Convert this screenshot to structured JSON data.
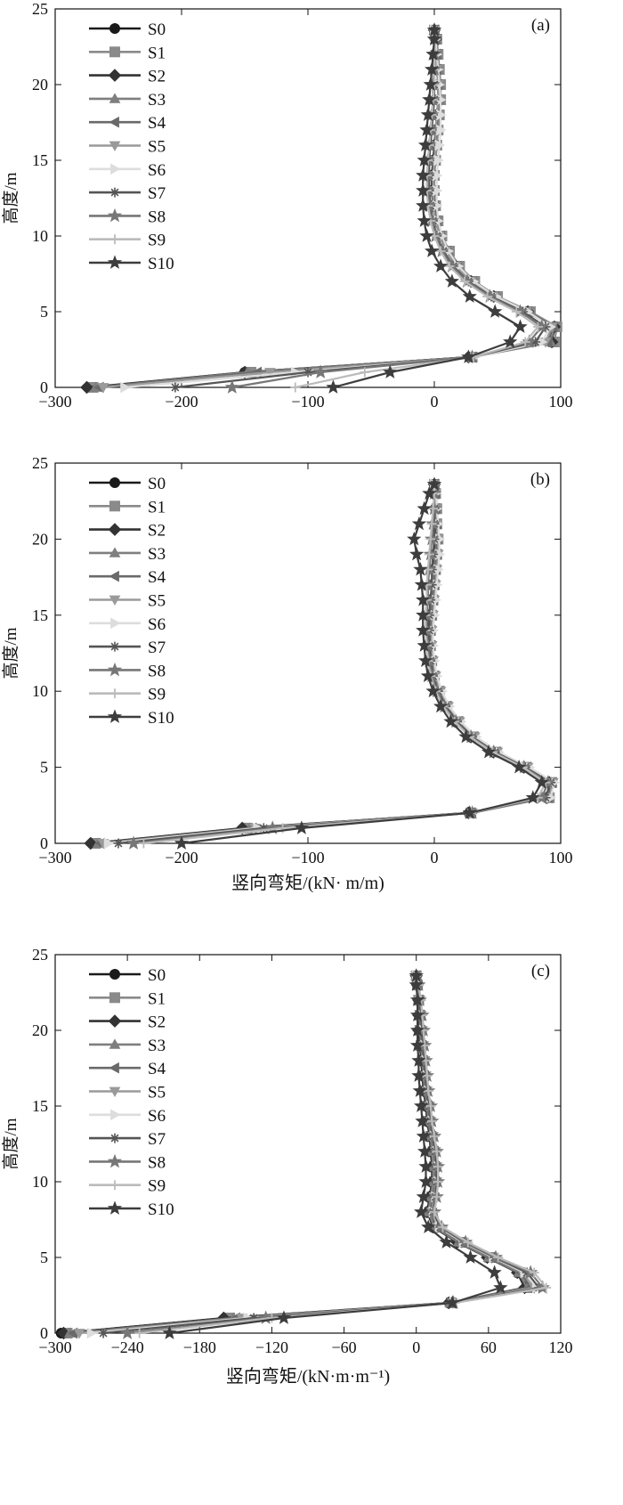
{
  "figure": {
    "series_colors": [
      "#1a1a1a",
      "#8a8a8a",
      "#333333",
      "#7f7f7f",
      "#6a6a6a",
      "#9a9a9a",
      "#dddddd",
      "#555555",
      "#777777",
      "#bbbbbb",
      "#3d3d3d"
    ],
    "series_markers": [
      "circle",
      "square",
      "diamond",
      "triangle-up",
      "triangle-left",
      "triangle-down",
      "triangle-right",
      "asterisk",
      "star",
      "plus",
      "star"
    ]
  },
  "chart_data": [
    {
      "type": "line",
      "panel_label": "(a)",
      "xlabel": "",
      "ylabel": "高度/m",
      "xlim": [
        -300,
        100
      ],
      "ylim": [
        0,
        25
      ],
      "xticks": [
        -300,
        -200,
        -100,
        0,
        100
      ],
      "xtick_labels": [
        "−300",
        "−200",
        "−100",
        "0",
        "100"
      ],
      "yticks": [
        0,
        5,
        10,
        15,
        20,
        25
      ],
      "ytick_labels": [
        "0",
        "5",
        "10",
        "15",
        "20",
        "25"
      ],
      "legend_position": "top-left",
      "grid": false,
      "y": [
        0,
        1,
        2,
        3,
        4,
        5,
        6,
        7,
        8,
        9,
        10,
        11,
        12,
        13,
        14,
        15,
        16,
        17,
        18,
        19,
        20,
        21,
        22,
        23,
        23.6
      ],
      "series": [
        {
          "name": "S0",
          "x": [
            -272,
            -150,
            28,
            92,
            96,
            75,
            48,
            30,
            18,
            10,
            5,
            2,
            0,
            -1,
            -1,
            0,
            1,
            2,
            3,
            4,
            4,
            3,
            2,
            1,
            0
          ]
        },
        {
          "name": "S1",
          "x": [
            -270,
            -145,
            30,
            95,
            97,
            76,
            50,
            32,
            20,
            12,
            6,
            3,
            1,
            0,
            0,
            1,
            2,
            3,
            4,
            5,
            5,
            4,
            3,
            2,
            0
          ]
        },
        {
          "name": "S2",
          "x": [
            -275,
            -150,
            27,
            93,
            95,
            74,
            47,
            29,
            17,
            9,
            4,
            1,
            -1,
            -2,
            -2,
            -1,
            0,
            1,
            2,
            3,
            3,
            2,
            1,
            1,
            0
          ]
        },
        {
          "name": "S3",
          "x": [
            -268,
            -148,
            29,
            92,
            95,
            75,
            49,
            31,
            19,
            11,
            5,
            2,
            0,
            -1,
            -1,
            0,
            1,
            2,
            3,
            4,
            4,
            3,
            2,
            1,
            0
          ]
        },
        {
          "name": "S4",
          "x": [
            -265,
            -140,
            30,
            90,
            94,
            74,
            48,
            30,
            18,
            10,
            5,
            2,
            0,
            -1,
            -1,
            0,
            1,
            2,
            2,
            3,
            3,
            2,
            2,
            1,
            0
          ]
        },
        {
          "name": "S5",
          "x": [
            -262,
            -130,
            31,
            88,
            93,
            73,
            47,
            29,
            17,
            9,
            4,
            1,
            -1,
            -1,
            -1,
            0,
            1,
            1,
            2,
            3,
            3,
            2,
            1,
            1,
            0
          ]
        },
        {
          "name": "S6",
          "x": [
            -245,
            -110,
            32,
            85,
            92,
            74,
            49,
            31,
            19,
            11,
            6,
            3,
            2,
            2,
            2,
            3,
            4,
            5,
            5,
            5,
            4,
            3,
            2,
            1,
            0
          ]
        },
        {
          "name": "S7",
          "x": [
            -205,
            -100,
            30,
            80,
            88,
            70,
            45,
            27,
            15,
            7,
            2,
            -1,
            -3,
            -4,
            -4,
            -4,
            -3,
            -2,
            -1,
            0,
            0,
            0,
            0,
            0,
            0
          ]
        },
        {
          "name": "S8",
          "x": [
            -160,
            -90,
            30,
            75,
            85,
            68,
            44,
            26,
            14,
            6,
            1,
            -2,
            -4,
            -5,
            -5,
            -5,
            -4,
            -3,
            -2,
            -1,
            -1,
            0,
            0,
            0,
            0
          ]
        },
        {
          "name": "S9",
          "x": [
            -110,
            -55,
            31,
            72,
            82,
            65,
            42,
            24,
            12,
            5,
            0,
            -3,
            -5,
            -6,
            -6,
            -5,
            -4,
            -3,
            -2,
            -1,
            0,
            0,
            0,
            0,
            0
          ]
        },
        {
          "name": "S10",
          "x": [
            -80,
            -35,
            27,
            60,
            68,
            48,
            28,
            14,
            5,
            -2,
            -6,
            -8,
            -9,
            -9,
            -9,
            -8,
            -7,
            -6,
            -5,
            -4,
            -3,
            -2,
            -1,
            0,
            0
          ]
        }
      ]
    },
    {
      "type": "line",
      "panel_label": "(b)",
      "xlabel": "竖向弯矩/(kN· m/m)",
      "ylabel": "高度/m",
      "xlim": [
        -300,
        100
      ],
      "ylim": [
        0,
        25
      ],
      "xticks": [
        -300,
        -200,
        -100,
        0,
        100
      ],
      "xtick_labels": [
        "−300",
        "−200",
        "−100",
        "0",
        "100"
      ],
      "yticks": [
        0,
        5,
        10,
        15,
        20,
        25
      ],
      "ytick_labels": [
        "0",
        "5",
        "10",
        "15",
        "20",
        "25"
      ],
      "legend_position": "top-left",
      "grid": false,
      "y": [
        0,
        1,
        2,
        3,
        4,
        5,
        6,
        7,
        8,
        9,
        10,
        11,
        12,
        13,
        14,
        15,
        16,
        17,
        18,
        19,
        20,
        21,
        22,
        23,
        23.6
      ],
      "series": [
        {
          "name": "S0",
          "x": [
            -270,
            -150,
            28,
            90,
            92,
            72,
            48,
            30,
            18,
            9,
            3,
            -1,
            -3,
            -4,
            -4,
            -3,
            -2,
            -1,
            0,
            1,
            2,
            2,
            1,
            1,
            0
          ]
        },
        {
          "name": "S1",
          "x": [
            -268,
            -148,
            29,
            91,
            93,
            73,
            49,
            31,
            19,
            10,
            4,
            0,
            -2,
            -3,
            -3,
            -2,
            -1,
            0,
            1,
            2,
            3,
            2,
            2,
            1,
            0
          ]
        },
        {
          "name": "S2",
          "x": [
            -272,
            -152,
            27,
            89,
            91,
            71,
            47,
            29,
            17,
            8,
            2,
            -2,
            -4,
            -5,
            -5,
            -4,
            -3,
            -2,
            -1,
            0,
            1,
            1,
            1,
            0,
            0
          ]
        },
        {
          "name": "S3",
          "x": [
            -266,
            -146,
            28,
            90,
            92,
            72,
            48,
            30,
            18,
            9,
            3,
            -1,
            -3,
            -4,
            -4,
            -3,
            -2,
            -1,
            0,
            1,
            2,
            2,
            1,
            1,
            0
          ]
        },
        {
          "name": "S4",
          "x": [
            -264,
            -144,
            29,
            90,
            93,
            73,
            49,
            31,
            19,
            10,
            4,
            0,
            -2,
            -3,
            -3,
            -2,
            -1,
            0,
            1,
            2,
            2,
            2,
            1,
            1,
            0
          ]
        },
        {
          "name": "S5",
          "x": [
            -262,
            -142,
            30,
            91,
            94,
            74,
            50,
            32,
            20,
            11,
            5,
            1,
            -1,
            -2,
            -2,
            -1,
            0,
            1,
            2,
            3,
            3,
            2,
            2,
            1,
            0
          ]
        },
        {
          "name": "S6",
          "x": [
            -258,
            -140,
            31,
            92,
            95,
            75,
            51,
            33,
            21,
            12,
            6,
            2,
            0,
            -1,
            -1,
            0,
            1,
            2,
            3,
            4,
            4,
            3,
            2,
            1,
            0
          ]
        },
        {
          "name": "S7",
          "x": [
            -250,
            -135,
            30,
            88,
            92,
            72,
            48,
            30,
            18,
            9,
            3,
            -1,
            -3,
            -4,
            -4,
            -4,
            -3,
            -2,
            -2,
            -1,
            0,
            0,
            0,
            0,
            0
          ]
        },
        {
          "name": "S8",
          "x": [
            -238,
            -128,
            30,
            85,
            90,
            71,
            47,
            29,
            17,
            8,
            2,
            -2,
            -4,
            -5,
            -6,
            -6,
            -5,
            -5,
            -4,
            -3,
            -2,
            -1,
            0,
            0,
            0
          ]
        },
        {
          "name": "S9",
          "x": [
            -230,
            -120,
            29,
            82,
            88,
            70,
            46,
            28,
            16,
            7,
            1,
            -3,
            -5,
            -6,
            -7,
            -7,
            -6,
            -6,
            -5,
            -4,
            -3,
            -2,
            -1,
            0,
            0
          ]
        },
        {
          "name": "S10",
          "x": [
            -200,
            -105,
            28,
            78,
            85,
            67,
            43,
            25,
            13,
            5,
            -1,
            -5,
            -7,
            -8,
            -9,
            -9,
            -9,
            -10,
            -11,
            -14,
            -16,
            -12,
            -8,
            -4,
            0
          ]
        }
      ]
    },
    {
      "type": "line",
      "panel_label": "(c)",
      "xlabel": "竖向弯矩/(kN·m·m⁻¹)",
      "ylabel": "高度/m",
      "xlim": [
        -300,
        120
      ],
      "ylim": [
        0,
        25
      ],
      "xticks": [
        -300,
        -240,
        -180,
        -120,
        -60,
        0,
        60,
        120
      ],
      "xtick_labels": [
        "−300",
        "−240",
        "−180",
        "−120",
        "−60",
        "0",
        "60",
        "120"
      ],
      "yticks": [
        0,
        5,
        10,
        15,
        20,
        25
      ],
      "ytick_labels": [
        "0",
        "5",
        "10",
        "15",
        "20",
        "25"
      ],
      "legend_position": "top-left",
      "grid": false,
      "y": [
        0,
        1,
        2,
        3,
        4,
        5,
        6,
        7,
        8,
        9,
        10,
        11,
        12,
        13,
        14,
        15,
        16,
        17,
        18,
        19,
        20,
        21,
        22,
        23,
        23.6
      ],
      "series": [
        {
          "name": "S0",
          "x": [
            -295,
            -158,
            28,
            92,
            85,
            60,
            35,
            15,
            10,
            12,
            14,
            14,
            13,
            12,
            10,
            9,
            7,
            6,
            5,
            4,
            3,
            3,
            2,
            1,
            0
          ]
        },
        {
          "name": "S1",
          "x": [
            -290,
            -155,
            29,
            94,
            86,
            61,
            36,
            16,
            11,
            13,
            15,
            15,
            14,
            12,
            10,
            9,
            7,
            6,
            5,
            4,
            3,
            3,
            2,
            1,
            0
          ]
        },
        {
          "name": "S2",
          "x": [
            -293,
            -160,
            27,
            90,
            84,
            59,
            34,
            14,
            9,
            11,
            13,
            13,
            12,
            11,
            9,
            8,
            6,
            5,
            4,
            3,
            2,
            2,
            2,
            1,
            0
          ]
        },
        {
          "name": "S3",
          "x": [
            -288,
            -152,
            28,
            92,
            85,
            60,
            35,
            15,
            10,
            12,
            14,
            14,
            13,
            12,
            10,
            9,
            7,
            6,
            5,
            4,
            3,
            3,
            2,
            1,
            0
          ]
        },
        {
          "name": "S4",
          "x": [
            -285,
            -150,
            29,
            95,
            87,
            62,
            37,
            17,
            12,
            14,
            16,
            16,
            15,
            13,
            11,
            10,
            8,
            7,
            6,
            5,
            4,
            3,
            2,
            1,
            0
          ]
        },
        {
          "name": "S5",
          "x": [
            -280,
            -145,
            30,
            98,
            88,
            63,
            38,
            18,
            13,
            15,
            17,
            17,
            16,
            14,
            12,
            11,
            9,
            8,
            7,
            6,
            5,
            4,
            3,
            1,
            0
          ]
        },
        {
          "name": "S6",
          "x": [
            -270,
            -140,
            31,
            100,
            90,
            64,
            39,
            19,
            14,
            16,
            18,
            18,
            17,
            15,
            13,
            12,
            10,
            9,
            8,
            7,
            6,
            5,
            3,
            2,
            0
          ]
        },
        {
          "name": "S7",
          "x": [
            -260,
            -135,
            30,
            102,
            92,
            65,
            40,
            20,
            14,
            16,
            17,
            17,
            16,
            14,
            12,
            11,
            9,
            8,
            7,
            6,
            5,
            4,
            3,
            2,
            0
          ]
        },
        {
          "name": "S8",
          "x": [
            -240,
            -125,
            31,
            105,
            95,
            66,
            41,
            21,
            15,
            17,
            18,
            18,
            17,
            15,
            13,
            12,
            10,
            9,
            8,
            7,
            6,
            5,
            3,
            2,
            0
          ]
        },
        {
          "name": "S9",
          "x": [
            -230,
            -120,
            32,
            108,
            98,
            68,
            43,
            22,
            15,
            17,
            18,
            18,
            17,
            15,
            13,
            12,
            10,
            9,
            8,
            7,
            6,
            5,
            4,
            2,
            0
          ]
        },
        {
          "name": "S10",
          "x": [
            -205,
            -110,
            30,
            70,
            65,
            45,
            25,
            10,
            4,
            6,
            8,
            8,
            7,
            6,
            5,
            4,
            3,
            2,
            2,
            1,
            1,
            1,
            1,
            0,
            0
          ]
        }
      ]
    }
  ]
}
